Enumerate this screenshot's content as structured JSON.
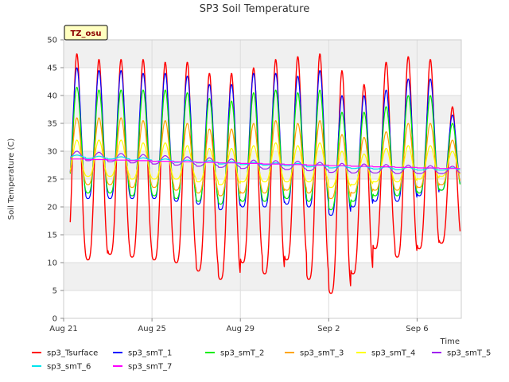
{
  "chart_data": {
    "type": "line",
    "title": "SP3 Soil Temperature",
    "site_badge": "TZ_osu",
    "xlabel": "Time",
    "ylabel": "Soil Temperature (C)",
    "ylim": [
      0,
      50
    ],
    "yticks": [
      0,
      5,
      10,
      15,
      20,
      25,
      30,
      35,
      40,
      45,
      50
    ],
    "xlim": [
      "2023-08-21",
      "2023-09-08"
    ],
    "xticks": [
      {
        "label": "Aug 21",
        "date": "2023-08-21"
      },
      {
        "label": "Aug 25",
        "date": "2023-08-25"
      },
      {
        "label": "Aug 29",
        "date": "2023-08-29"
      },
      {
        "label": "Sep 2",
        "date": "2023-09-02"
      },
      {
        "label": "Sep 6",
        "date": "2023-09-06"
      }
    ],
    "background_bands": true,
    "legend_position": "bottom",
    "daily_dates": [
      "2023-08-21",
      "2023-08-22",
      "2023-08-23",
      "2023-08-24",
      "2023-08-25",
      "2023-08-26",
      "2023-08-27",
      "2023-08-28",
      "2023-08-29",
      "2023-08-30",
      "2023-08-31",
      "2023-09-01",
      "2023-09-02",
      "2023-09-03",
      "2023-09-04",
      "2023-09-05",
      "2023-09-06",
      "2023-09-07"
    ],
    "series": [
      {
        "name": "sp3_Tsurface",
        "color": "#ff0000",
        "daily_max": [
          47.5,
          46.5,
          46.5,
          46.5,
          46.0,
          46.0,
          44.0,
          44.0,
          45.0,
          46.5,
          47.0,
          47.5,
          44.5,
          42.0,
          46.0,
          47.0,
          46.5,
          38.0
        ],
        "daily_min": [
          10.5,
          10.5,
          11.5,
          11.0,
          10.5,
          10.0,
          8.5,
          7.0,
          10.0,
          8.0,
          10.5,
          7.0,
          4.5,
          8.0,
          12.5,
          11.0,
          12.5,
          13.5
        ]
      },
      {
        "name": "sp3_smT_1",
        "color": "#0000ff",
        "daily_max": [
          45.0,
          44.5,
          44.5,
          44.0,
          44.0,
          43.5,
          42.0,
          42.0,
          44.0,
          44.0,
          43.5,
          44.5,
          40.0,
          40.0,
          41.0,
          43.0,
          43.0,
          36.5
        ],
        "daily_min": [
          22.0,
          21.5,
          21.5,
          21.5,
          21.5,
          21.0,
          20.5,
          19.5,
          20.0,
          20.0,
          20.5,
          20.0,
          18.5,
          20.0,
          21.0,
          21.0,
          22.0,
          23.0
        ]
      },
      {
        "name": "sp3_smT_2",
        "color": "#00ee00",
        "daily_max": [
          41.5,
          41.0,
          41.0,
          41.0,
          41.0,
          40.5,
          39.5,
          39.0,
          40.5,
          41.0,
          40.5,
          41.0,
          37.0,
          37.0,
          38.0,
          40.0,
          40.0,
          35.0
        ],
        "daily_min": [
          22.5,
          22.5,
          22.5,
          22.0,
          22.0,
          21.5,
          21.0,
          20.5,
          21.0,
          21.0,
          21.5,
          21.0,
          19.5,
          21.0,
          22.0,
          22.0,
          22.5,
          23.0
        ]
      },
      {
        "name": "sp3_smT_3",
        "color": "#ffa500",
        "daily_max": [
          36.0,
          36.0,
          36.0,
          35.5,
          35.5,
          35.0,
          34.0,
          34.0,
          35.0,
          35.5,
          35.0,
          35.5,
          33.0,
          32.5,
          33.5,
          35.0,
          35.0,
          32.0
        ],
        "daily_min": [
          24.0,
          24.0,
          24.0,
          23.5,
          23.5,
          23.0,
          22.5,
          22.0,
          22.5,
          22.5,
          23.0,
          22.5,
          21.5,
          22.5,
          23.0,
          23.0,
          23.5,
          24.0
        ]
      },
      {
        "name": "sp3_smT_4",
        "color": "#ffff00",
        "daily_max": [
          32.0,
          32.0,
          32.0,
          31.5,
          31.5,
          31.0,
          30.5,
          30.5,
          31.0,
          31.5,
          31.0,
          31.5,
          30.0,
          29.5,
          30.5,
          31.0,
          31.0,
          30.0
        ],
        "daily_min": [
          25.5,
          25.5,
          25.5,
          25.0,
          25.0,
          25.0,
          24.5,
          24.0,
          24.5,
          24.5,
          24.5,
          24.5,
          23.5,
          24.0,
          24.5,
          24.5,
          25.0,
          25.5
        ]
      },
      {
        "name": "sp3_smT_5",
        "color": "#a020f0",
        "daily_max": [
          30.0,
          29.8,
          29.6,
          29.4,
          29.2,
          29.0,
          28.8,
          28.6,
          28.4,
          28.3,
          28.2,
          28.0,
          27.8,
          27.7,
          27.6,
          27.5,
          27.4,
          27.3
        ],
        "daily_min": [
          28.5,
          28.3,
          28.1,
          27.9,
          27.7,
          27.5,
          27.3,
          27.1,
          26.9,
          26.8,
          26.7,
          26.5,
          26.2,
          26.1,
          26.1,
          26.0,
          26.0,
          26.0
        ]
      },
      {
        "name": "sp3_smT_6",
        "color": "#00e5ee",
        "daily_max": [
          29.3,
          29.1,
          29.0,
          28.8,
          28.6,
          28.4,
          28.3,
          28.1,
          28.0,
          27.9,
          27.8,
          27.6,
          27.4,
          27.3,
          27.2,
          27.1,
          27.0,
          27.0
        ],
        "daily_min": [
          28.9,
          28.7,
          28.6,
          28.4,
          28.2,
          28.0,
          27.9,
          27.7,
          27.6,
          27.5,
          27.4,
          27.2,
          27.0,
          26.9,
          26.8,
          26.7,
          26.6,
          26.6
        ]
      },
      {
        "name": "sp3_smT_7",
        "color": "#ff00ff",
        "daily_max": [
          28.6,
          28.5,
          28.4,
          28.3,
          28.2,
          28.1,
          28.0,
          27.9,
          27.8,
          27.7,
          27.6,
          27.5,
          27.4,
          27.3,
          27.2,
          27.1,
          27.0,
          26.9
        ],
        "daily_min": [
          28.6,
          28.5,
          28.4,
          28.3,
          28.2,
          28.1,
          28.0,
          27.9,
          27.8,
          27.7,
          27.6,
          27.5,
          27.4,
          27.3,
          27.2,
          27.1,
          27.0,
          26.9
        ]
      }
    ]
  }
}
